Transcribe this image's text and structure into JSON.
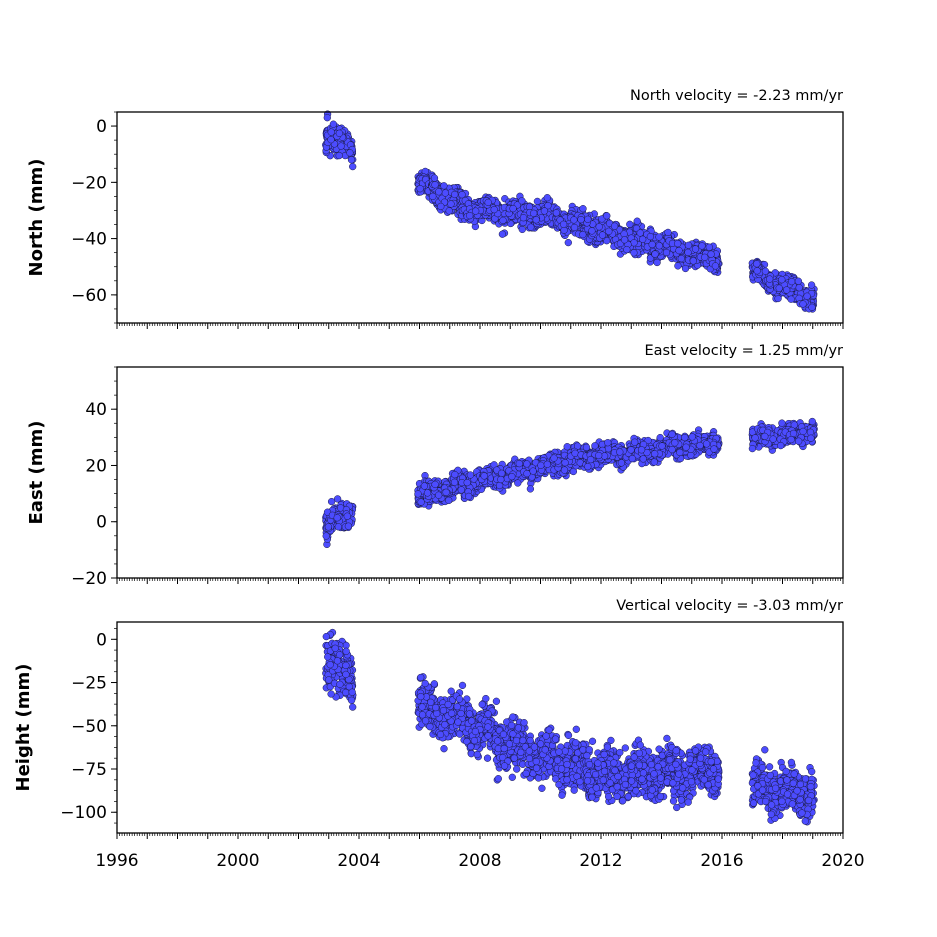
{
  "chart_data": [
    {
      "type": "scatter",
      "velocity_label": "North velocity = -2.23 mm/yr",
      "ylabel": "North (mm)",
      "xlim": [
        1996,
        2020
      ],
      "ylim": [
        -70,
        5
      ],
      "yticks": [
        0,
        -20,
        -40,
        -60
      ],
      "ytick_labels": [
        "0",
        "−20",
        "−40",
        "−60"
      ],
      "show_x_tick_labels": false,
      "marker_color": "#4c4cff",
      "segments": [
        {
          "start": 2002.9,
          "end": 2003.8,
          "y0": -4,
          "y1": -8,
          "noise": 2.5,
          "seed": 11
        },
        {
          "start": 2005.95,
          "end": 2006.4,
          "y0": -20,
          "y1": -23,
          "noise": 2.2,
          "seed": 12
        },
        {
          "start": 2006.4,
          "end": 2007.4,
          "y0": -22,
          "y1": -29,
          "noise": 2.2,
          "seed": 13
        },
        {
          "start": 2007.4,
          "end": 2010.5,
          "y0": -29,
          "y1": -32,
          "noise": 2.0,
          "seed": 14
        },
        {
          "start": 2010.5,
          "end": 2015.9,
          "y0": -33,
          "y1": -48,
          "noise": 2.0,
          "seed": 15
        },
        {
          "start": 2017.0,
          "end": 2019.05,
          "y0": -52,
          "y1": -62,
          "noise": 1.8,
          "seed": 16
        }
      ]
    },
    {
      "type": "scatter",
      "velocity_label": "East velocity = 1.25 mm/yr",
      "ylabel": "East (mm)",
      "xlim": [
        1996,
        2020
      ],
      "ylim": [
        -20,
        55
      ],
      "yticks": [
        -20,
        0,
        20,
        40
      ],
      "ytick_labels": [
        "−20",
        "0",
        "20",
        "40"
      ],
      "show_x_tick_labels": false,
      "marker_color": "#4c4cff",
      "segments": [
        {
          "start": 2002.9,
          "end": 2003.8,
          "y0": -1,
          "y1": 4,
          "noise": 2.2,
          "seed": 21
        },
        {
          "start": 2005.95,
          "end": 2008.5,
          "y0": 9,
          "y1": 16,
          "noise": 1.8,
          "seed": 22
        },
        {
          "start": 2008.5,
          "end": 2011.5,
          "y0": 16,
          "y1": 23,
          "noise": 1.7,
          "seed": 23
        },
        {
          "start": 2011.5,
          "end": 2015.9,
          "y0": 23,
          "y1": 28,
          "noise": 1.7,
          "seed": 24
        },
        {
          "start": 2017.0,
          "end": 2019.05,
          "y0": 29,
          "y1": 32,
          "noise": 1.6,
          "seed": 25
        }
      ]
    },
    {
      "type": "scatter",
      "velocity_label": "Vertical velocity = -3.03 mm/yr",
      "ylabel": "Height (mm)",
      "xlim": [
        1996,
        2020
      ],
      "ylim": [
        -112,
        10
      ],
      "yticks": [
        0,
        -25,
        -50,
        -75,
        -100
      ],
      "ytick_labels": [
        "0",
        "−25",
        "−50",
        "−75",
        "−100"
      ],
      "show_x_tick_labels": true,
      "xticks": [
        1996,
        2000,
        2004,
        2008,
        2012,
        2016,
        2020
      ],
      "xtick_labels": [
        "1996",
        "2000",
        "2004",
        "2008",
        "2012",
        "2016",
        "2020"
      ],
      "marker_color": "#4c4cff",
      "segments": [
        {
          "start": 2002.9,
          "end": 2003.8,
          "y0": -15,
          "y1": -20,
          "noise": 8,
          "seed": 31
        },
        {
          "start": 2005.95,
          "end": 2008.5,
          "y0": -38,
          "y1": -55,
          "noise": 6.5,
          "seed": 32
        },
        {
          "start": 2008.5,
          "end": 2011.5,
          "y0": -58,
          "y1": -76,
          "noise": 6.5,
          "seed": 33
        },
        {
          "start": 2011.5,
          "end": 2015.9,
          "y0": -78,
          "y1": -76,
          "noise": 6.5,
          "seed": 34
        },
        {
          "start": 2017.0,
          "end": 2019.05,
          "y0": -86,
          "y1": -90,
          "noise": 6.5,
          "seed": 35
        }
      ]
    }
  ]
}
